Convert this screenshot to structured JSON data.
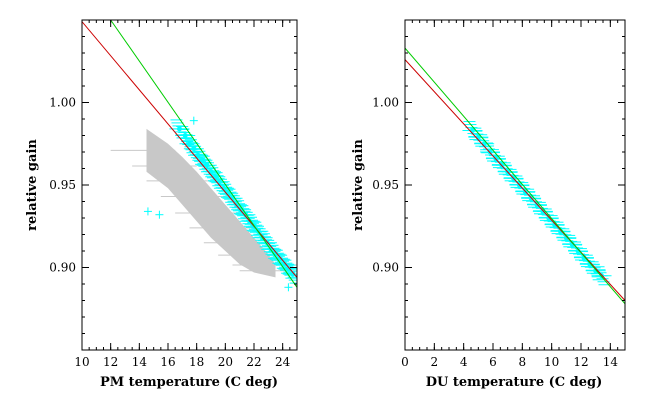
{
  "colors": {
    "scatter": "#00ffff",
    "grey_band": "#c8c8c8",
    "fit_red": "#cc0000",
    "fit_green": "#00cc00",
    "frame": "#000000"
  },
  "chart_data": [
    {
      "type": "scatter",
      "title": "",
      "xlabel": "PM temperature (C deg)",
      "ylabel": "relative gain",
      "xlim": [
        10,
        25
      ],
      "ylim": [
        0.85,
        1.05
      ],
      "xticks": [
        10,
        12,
        14,
        16,
        18,
        20,
        22,
        24
      ],
      "xticklabels": [
        "10",
        "12",
        "14",
        "16",
        "18",
        "20",
        "22",
        "24"
      ],
      "yticks": [
        0.9,
        0.95,
        1.0
      ],
      "yticklabels": [
        "0.90",
        "0.95",
        "1.00"
      ],
      "grid": false,
      "legend": "none",
      "lines": [
        {
          "color": "red",
          "x": [
            10,
            25
          ],
          "y": [
            1.049,
            0.894
          ]
        },
        {
          "color": "green",
          "x": [
            12,
            25
          ],
          "y": [
            1.05,
            0.888
          ]
        }
      ],
      "band": {
        "color": "grey",
        "x_center": [
          14.5,
          16,
          17,
          18,
          19,
          20,
          21,
          22,
          23,
          23.5
        ],
        "y_upper": [
          0.984,
          0.975,
          0.967,
          0.958,
          0.948,
          0.938,
          0.928,
          0.918,
          0.908,
          0.902
        ],
        "y_lower": [
          0.958,
          0.948,
          0.938,
          0.928,
          0.918,
          0.91,
          0.902,
          0.897,
          0.895,
          0.894
        ]
      },
      "series": [
        {
          "color": "cyan",
          "x": [
            16.8,
            17.2,
            17.5,
            17.8,
            18.1,
            18.4,
            18.7,
            19.0,
            19.3,
            19.6,
            19.9,
            20.2,
            20.5,
            20.8,
            21.1,
            21.4,
            21.7,
            22.0,
            22.3,
            22.6,
            22.9,
            23.2,
            23.5,
            23.8,
            24.1,
            24.4,
            24.7
          ],
          "y": [
            0.984,
            0.98,
            0.975,
            0.972,
            0.968,
            0.965,
            0.962,
            0.958,
            0.955,
            0.952,
            0.948,
            0.945,
            0.942,
            0.938,
            0.935,
            0.932,
            0.928,
            0.925,
            0.922,
            0.918,
            0.915,
            0.911,
            0.908,
            0.905,
            0.902,
            0.899,
            0.896
          ]
        },
        {
          "color": "cyan",
          "note_points": "outliers",
          "x": [
            14.6,
            15.4,
            17.8,
            24.4
          ],
          "y": [
            0.934,
            0.932,
            0.989,
            0.888
          ]
        }
      ]
    },
    {
      "type": "scatter",
      "title": "",
      "xlabel": "DU temperature (C deg)",
      "ylabel": "relative gain",
      "xlim": [
        0,
        15
      ],
      "ylim": [
        0.85,
        1.05
      ],
      "xticks": [
        0,
        2,
        4,
        6,
        8,
        10,
        12,
        14
      ],
      "xticklabels": [
        "0",
        "2",
        "4",
        "6",
        "8",
        "10",
        "12",
        "14"
      ],
      "yticks": [
        0.9,
        0.95,
        1.0
      ],
      "yticklabels": [
        "0.90",
        "0.95",
        "1.00"
      ],
      "grid": false,
      "legend": "none",
      "lines": [
        {
          "color": "red",
          "x": [
            0,
            15
          ],
          "y": [
            1.026,
            0.88
          ]
        },
        {
          "color": "green",
          "x": [
            0,
            15
          ],
          "y": [
            1.033,
            0.878
          ]
        }
      ],
      "series": [
        {
          "color": "cyan",
          "x": [
            4.6,
            5.0,
            5.4,
            5.8,
            6.2,
            6.6,
            7.0,
            7.4,
            7.8,
            8.2,
            8.6,
            9.0,
            9.4,
            9.8,
            10.2,
            10.6,
            11.0,
            11.4,
            11.8,
            12.2,
            12.6,
            13.0,
            13.4
          ],
          "y": [
            0.983,
            0.979,
            0.975,
            0.97,
            0.966,
            0.962,
            0.958,
            0.954,
            0.95,
            0.946,
            0.942,
            0.938,
            0.934,
            0.93,
            0.926,
            0.922,
            0.918,
            0.914,
            0.91,
            0.906,
            0.902,
            0.898,
            0.895
          ]
        }
      ]
    }
  ]
}
